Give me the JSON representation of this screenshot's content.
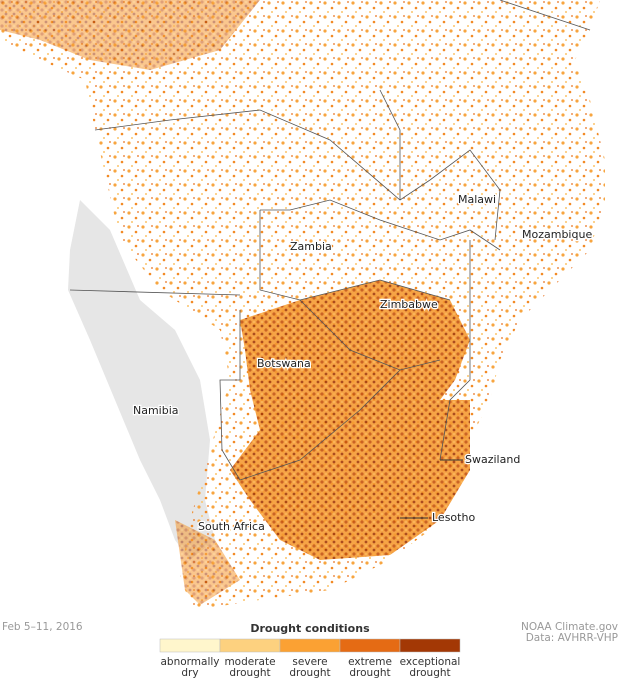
{
  "date": "Feb 5–11, 2016",
  "map": {
    "labels": [
      "Malawi",
      "Mozambique",
      "Zambia",
      "Zimbabwe",
      "Botswana",
      "Namibia",
      "South Africa",
      "Swaziland",
      "Lesotho"
    ]
  },
  "legend": {
    "title": "Drought conditions",
    "items": [
      {
        "lines": [
          "abnormally",
          "dry"
        ],
        "color": "#fff6cc"
      },
      {
        "lines": [
          "moderate",
          "drought"
        ],
        "color": "#fdd17f"
      },
      {
        "lines": [
          "severe",
          "drought"
        ],
        "color": "#fba133"
      },
      {
        "lines": [
          "extreme",
          "drought"
        ],
        "color": "#e56b14"
      },
      {
        "lines": [
          "exceptional",
          "drought"
        ],
        "color": "#a33805"
      }
    ]
  },
  "credits": [
    "NOAA Climate.gov",
    "Data: AVHRR-VHP"
  ]
}
